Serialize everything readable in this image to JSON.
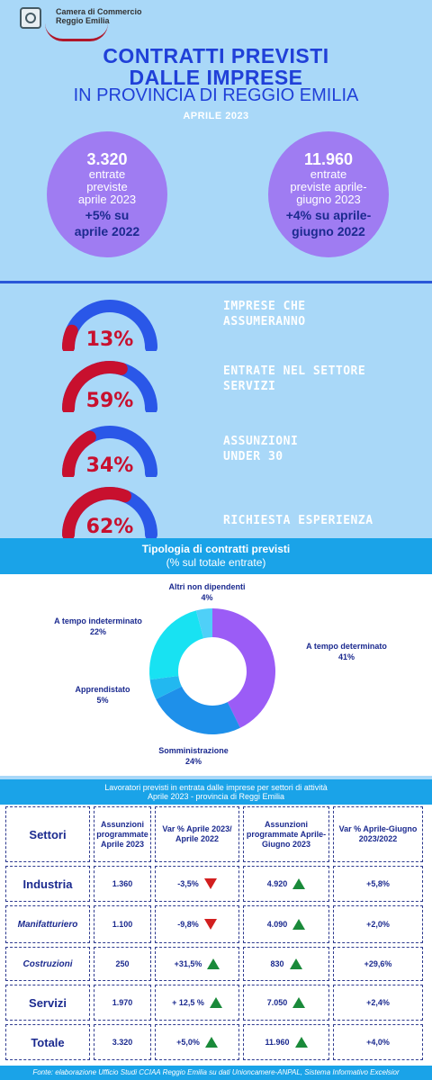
{
  "header": {
    "org_line1": "Camera di Commercio",
    "org_line2": "Reggio Emilia",
    "title_line1": "CONTRATTI PREVISTI",
    "title_line2": "DALLE IMPRESE",
    "title_line3": "IN PROVINCIA DI REGGIO EMILIA",
    "period": "APRILE 2023"
  },
  "bubbles": [
    {
      "num": "3.320",
      "lbl1": "entrate",
      "lbl2": "previste",
      "lbl3": "aprile 2023",
      "var1": "+5% su",
      "var2": "aprile 2022"
    },
    {
      "num": "11.960",
      "lbl1": "entrate",
      "lbl2": "previste aprile-",
      "lbl3": "giugno 2023",
      "var1": "+4% su aprile-",
      "var2": "giugno 2022"
    }
  ],
  "gauges": [
    {
      "value": "13%",
      "pct": 13,
      "line1": "IMPRESE CHE",
      "line2": "ASSUMERANNO"
    },
    {
      "value": "59%",
      "pct": 59,
      "line1": "ENTRATE NEL SETTORE",
      "line2": "SERVIZI"
    },
    {
      "value": "34%",
      "pct": 34,
      "line1": "ASSUNZIONI",
      "line2": "UNDER 30"
    },
    {
      "value": "62%",
      "pct": 62,
      "line1": "RICHIESTA ESPERIENZA",
      "line2": ""
    }
  ],
  "colors": {
    "gauge_fill": "#c8102e",
    "gauge_rest": "#2a57e8",
    "up": "#1a8a3a",
    "down": "#d21f1f"
  },
  "chart_data": {
    "type": "pie",
    "title": "Tipologia di contratti previsti",
    "subtitle": "(% sul totale entrate)",
    "slices": [
      {
        "name": "A tempo determinato",
        "value": 41,
        "label": "41%",
        "color": "#9b5cf6"
      },
      {
        "name": "Somministrazione",
        "value": 24,
        "label": "24%",
        "color": "#1e90ea"
      },
      {
        "name": "Apprendistato",
        "value": 5,
        "label": "5%",
        "color": "#22b8f0"
      },
      {
        "name": "A tempo indeterminato",
        "value": 22,
        "label": "22%",
        "color": "#18e2f2"
      },
      {
        "name": "Altri non dipendenti",
        "value": 4,
        "label": "4%",
        "color": "#4fd0f8"
      }
    ]
  },
  "table": {
    "title_line1": "Lavoratori previsti in entrata dalle imprese per settori di attività",
    "title_line2": "Aprile 2023 - provincia di Reggi Emilia",
    "headers": [
      "Settori",
      "Assunzioni programmate Aprile 2023",
      "Var % Aprile 2023/ Aprile 2022",
      "Assunzioni programmate Aprile-Giugno 2023",
      "Var % Aprile-Giugno 2023/2022"
    ],
    "rows": [
      {
        "settore": "Industria",
        "a1": "1.360",
        "v1": "-3,5%",
        "t1": "down",
        "a2": "4.920",
        "t2": "up",
        "v2": "+5,8%"
      },
      {
        "settore": "Manifatturiero",
        "a1": "1.100",
        "v1": "-9,8%",
        "t1": "down",
        "a2": "4.090",
        "t2": "up",
        "v2": "+2,0%"
      },
      {
        "settore": "Costruzioni",
        "a1": "250",
        "v1": "+31,5%",
        "t1": "up",
        "a2": "830",
        "t2": "up",
        "v2": "+29,6%"
      },
      {
        "settore": "Servizi",
        "a1": "1.970",
        "v1": "+ 12,5 %",
        "t1": "up",
        "a2": "7.050",
        "t2": "up",
        "v2": "+2,4%"
      },
      {
        "settore": "Totale",
        "a1": "3.320",
        "v1": "+5,0%",
        "t1": "up",
        "a2": "11.960",
        "t2": "up",
        "v2": "+4,0%"
      }
    ]
  },
  "footer": "Fonte: elaborazione Ufficio Studi CCIAA Reggio Emilia su dati Unioncamere-ANPAL, Sistema Informativo Excelsior"
}
